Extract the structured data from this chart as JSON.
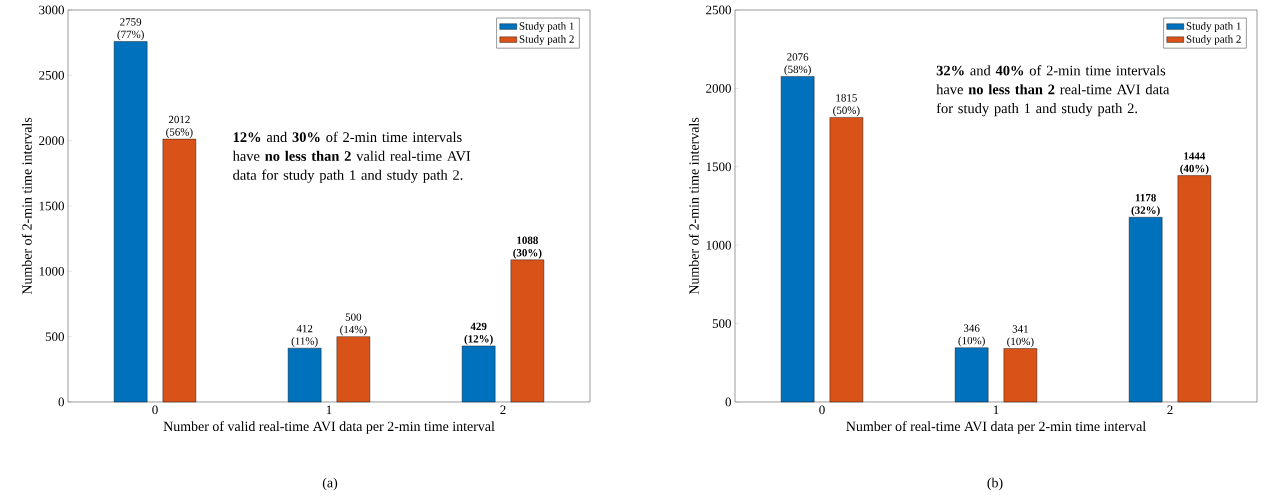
{
  "chart_data": [
    {
      "type": "bar",
      "categories": [
        "0",
        "1",
        "2"
      ],
      "xlabel": "Number of valid real-time AVI data per 2-min time interval",
      "ylabel": "Number of 2-min time intervals",
      "ylim": [
        0,
        3000
      ],
      "yticks": [
        0,
        500,
        1000,
        1500,
        2000,
        2500,
        3000
      ],
      "legend": "top right",
      "series": [
        {
          "name": "Study path 1",
          "color": "#0072bd",
          "values": [
            2759,
            412,
            429
          ],
          "value_labels": [
            "2759 (77%)",
            "412 (11%)",
            "**429 (12%)**"
          ]
        },
        {
          "name": "Study path 2",
          "color": "#d95319",
          "values": [
            2012,
            500,
            1088
          ],
          "value_labels": [
            "2012 (56%)",
            "500 (14%)",
            "**1088 (30%)**"
          ]
        }
      ],
      "annotations": [
        "**12%** and **30%** of 2-min time intervals have **no less than 2** valid real-time AVI data for study path 1 and study path 2.",
        "(a)"
      ]
    },
    {
      "type": "bar",
      "categories": [
        "0",
        "1",
        "2"
      ],
      "xlabel": "Number of real-time AVI data per 2-min time interval",
      "ylabel": "Number of 2-min time intervals",
      "ylim": [
        0,
        2500
      ],
      "yticks": [
        0,
        500,
        1000,
        1500,
        2000,
        2500
      ],
      "legend": "top right",
      "series": [
        {
          "name": "Study path 1",
          "color": "#0072bd",
          "values": [
            2076,
            346,
            1178
          ],
          "value_labels": [
            "2076 (58%)",
            "346 (10%)",
            "**1178 (32%)**"
          ]
        },
        {
          "name": "Study path 2",
          "color": "#d95319",
          "values": [
            1815,
            341,
            1444
          ],
          "value_labels": [
            "1815 (50%)",
            "341 (10%)",
            "**1444 (40%)**"
          ]
        }
      ],
      "annotations": [
        "**32%** and **40%** of 2-min time intervals have **no less than 2** real-time AVI data for study path 1 and study path 2.",
        "(b)"
      ]
    }
  ]
}
